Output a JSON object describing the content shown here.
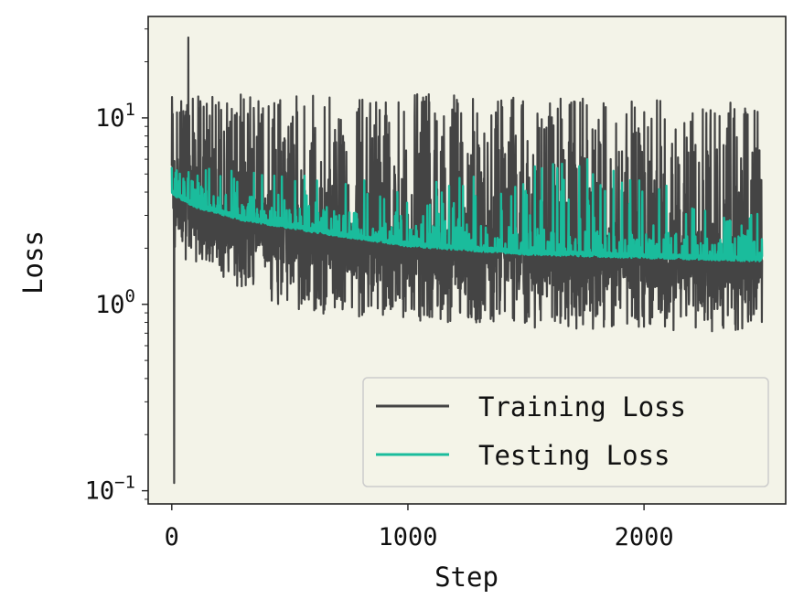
{
  "chart_data": {
    "type": "line",
    "xlabel": "Step",
    "ylabel": "Loss",
    "xlim": [
      -100,
      2600
    ],
    "ylim": [
      0.085,
      35
    ],
    "yscale": "log",
    "grid": false,
    "legend_position": "bottom-right",
    "x_ticks": [
      {
        "value": 0,
        "label": "0"
      },
      {
        "value": 1000,
        "label": "1000"
      },
      {
        "value": 2000,
        "label": "2000"
      }
    ],
    "y_ticks": [
      {
        "value": 0.1,
        "base": "10",
        "exp": "−1"
      },
      {
        "value": 1,
        "base": "10",
        "exp": "0"
      },
      {
        "value": 10,
        "base": "10",
        "exp": "1"
      }
    ],
    "background_color": "#f3f3e8",
    "series": [
      {
        "name": "Training Loss",
        "color": "#444444",
        "x_start": 0,
        "x_end": 2500,
        "num_points": 2500,
        "trend_points": [
          [
            0,
            3.8
          ],
          [
            100,
            3.0
          ],
          [
            300,
            2.5
          ],
          [
            600,
            2.2
          ],
          [
            1000,
            1.95
          ],
          [
            1500,
            1.8
          ],
          [
            2000,
            1.72
          ],
          [
            2500,
            1.68
          ]
        ],
        "band_low": [
          [
            0,
            1.9
          ],
          [
            500,
            0.9
          ],
          [
            1500,
            0.75
          ],
          [
            2500,
            0.7
          ]
        ],
        "band_high": [
          [
            0,
            13
          ],
          [
            500,
            14
          ],
          [
            1500,
            13
          ],
          [
            2500,
            12
          ]
        ],
        "min_point": [
          10,
          0.11
        ],
        "max_point": [
          70,
          27
        ]
      },
      {
        "name": "Testing Loss",
        "color": "#1abc9c",
        "x_start": 0,
        "x_end": 2500,
        "num_points": 2500,
        "trend_points": [
          [
            0,
            4.0
          ],
          [
            100,
            3.4
          ],
          [
            300,
            2.9
          ],
          [
            600,
            2.5
          ],
          [
            1000,
            2.1
          ],
          [
            1500,
            1.9
          ],
          [
            2000,
            1.82
          ],
          [
            2500,
            1.75
          ]
        ],
        "spike_max": [
          [
            0,
            5.5
          ],
          [
            500,
            5.0
          ],
          [
            1000,
            4.5
          ],
          [
            1760,
            6.0
          ],
          [
            2500,
            3.0
          ]
        ]
      }
    ]
  }
}
